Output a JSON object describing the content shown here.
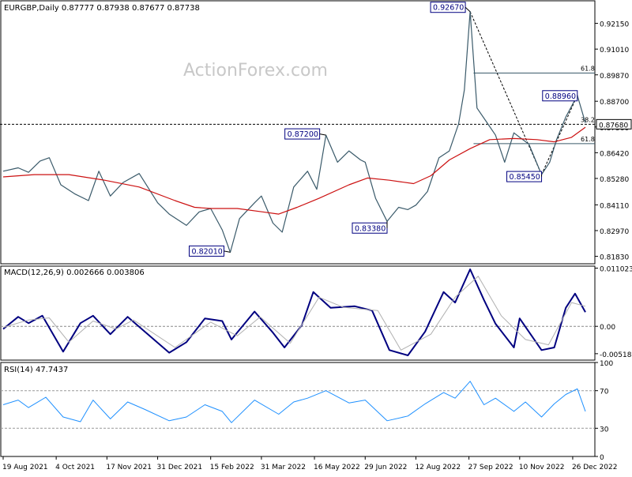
{
  "chart_data": {
    "type": "line",
    "title": "EURGBP,Daily  0.87777 0.87938 0.87677 0.87738",
    "watermark": "ActionForex.com",
    "x_labels": [
      "19 Aug 2021",
      "4 Oct 2021",
      "17 Nov 2021",
      "31 Dec 2021",
      "15 Feb 2022",
      "31 Mar 2022",
      "16 May 2022",
      "29 Jun 2022",
      "12 Aug 2022",
      "27 Sep 2022",
      "10 Nov 2022",
      "26 Dec 2022"
    ],
    "x_range": [
      "2021-08-19",
      "2023-01-06"
    ],
    "price_panel": {
      "y_ticks": [
        "0.92150",
        "0.91010",
        "0.89870",
        "0.88700",
        "0.87560",
        "0.86420",
        "0.85280",
        "0.84110",
        "0.82970",
        "0.81830"
      ],
      "ylim": [
        0.815,
        0.9315
      ],
      "current_price": "0.87680",
      "current_value": 0.8768,
      "fib_levels": [
        {
          "label": "61.8",
          "value": 0.8995
        },
        {
          "label": "38.2",
          "value": 0.8768
        },
        {
          "label": "61.8",
          "value": 0.8682
        }
      ],
      "callouts": [
        {
          "text": "0.92670",
          "date": "2022-09-28",
          "value": 0.9267
        },
        {
          "text": "0.87200",
          "date": "2022-05-26",
          "value": 0.872
        },
        {
          "text": "0.82010",
          "date": "2022-03-04",
          "value": 0.8201
        },
        {
          "text": "0.83380",
          "date": "2022-07-18",
          "value": 0.8338
        },
        {
          "text": "0.85450",
          "date": "2022-11-29",
          "value": 0.8545
        },
        {
          "text": "0.88960",
          "date": "2022-12-30",
          "value": 0.8896
        }
      ],
      "series": [
        {
          "role": "price",
          "color": "#3a5a6a",
          "points": [
            [
              "2021-08-19",
              0.856
            ],
            [
              "2021-09-01",
              0.8575
            ],
            [
              "2021-09-10",
              0.8555
            ],
            [
              "2021-09-20",
              0.8605
            ],
            [
              "2021-09-28",
              0.862
            ],
            [
              "2021-10-08",
              0.85
            ],
            [
              "2021-10-20",
              0.846
            ],
            [
              "2021-11-01",
              0.843
            ],
            [
              "2021-11-10",
              0.856
            ],
            [
              "2021-11-20",
              0.845
            ],
            [
              "2021-12-01",
              0.851
            ],
            [
              "2021-12-15",
              0.855
            ],
            [
              "2021-12-31",
              0.842
            ],
            [
              "2022-01-10",
              0.837
            ],
            [
              "2022-01-25",
              0.832
            ],
            [
              "2022-02-05",
              0.838
            ],
            [
              "2022-02-15",
              0.8395
            ],
            [
              "2022-02-25",
              0.83
            ],
            [
              "2022-03-04",
              0.8201
            ],
            [
              "2022-03-12",
              0.835
            ],
            [
              "2022-03-25",
              0.842
            ],
            [
              "2022-03-31",
              0.845
            ],
            [
              "2022-04-10",
              0.833
            ],
            [
              "2022-04-18",
              0.829
            ],
            [
              "2022-04-28",
              0.849
            ],
            [
              "2022-05-10",
              0.856
            ],
            [
              "2022-05-18",
              0.848
            ],
            [
              "2022-05-26",
              0.872
            ],
            [
              "2022-06-05",
              0.86
            ],
            [
              "2022-06-15",
              0.865
            ],
            [
              "2022-06-25",
              0.861
            ],
            [
              "2022-06-29",
              0.86
            ],
            [
              "2022-07-08",
              0.844
            ],
            [
              "2022-07-18",
              0.8338
            ],
            [
              "2022-07-28",
              0.84
            ],
            [
              "2022-08-05",
              0.839
            ],
            [
              "2022-08-12",
              0.841
            ],
            [
              "2022-08-22",
              0.847
            ],
            [
              "2022-09-01",
              0.862
            ],
            [
              "2022-09-10",
              0.865
            ],
            [
              "2022-09-18",
              0.877
            ],
            [
              "2022-09-23",
              0.892
            ],
            [
              "2022-09-28",
              0.9267
            ],
            [
              "2022-10-04",
              0.884
            ],
            [
              "2022-10-12",
              0.878
            ],
            [
              "2022-10-20",
              0.872
            ],
            [
              "2022-10-28",
              0.86
            ],
            [
              "2022-11-05",
              0.873
            ],
            [
              "2022-11-10",
              0.871
            ],
            [
              "2022-11-18",
              0.868
            ],
            [
              "2022-11-29",
              0.8545
            ],
            [
              "2022-12-06",
              0.86
            ],
            [
              "2022-12-12",
              0.87
            ],
            [
              "2022-12-20",
              0.88
            ],
            [
              "2022-12-30",
              0.8896
            ],
            [
              "2023-01-06",
              0.8774
            ]
          ]
        },
        {
          "role": "moving-average",
          "color": "#cc1111",
          "points": [
            [
              "2021-08-19",
              0.8535
            ],
            [
              "2021-09-15",
              0.8545
            ],
            [
              "2021-10-15",
              0.8545
            ],
            [
              "2021-11-15",
              0.852
            ],
            [
              "2021-12-15",
              0.849
            ],
            [
              "2022-01-15",
              0.843
            ],
            [
              "2022-02-01",
              0.84
            ],
            [
              "2022-02-15",
              0.8395
            ],
            [
              "2022-03-10",
              0.8395
            ],
            [
              "2022-04-01",
              0.838
            ],
            [
              "2022-04-15",
              0.837
            ],
            [
              "2022-05-01",
              0.84
            ],
            [
              "2022-05-20",
              0.844
            ],
            [
              "2022-06-15",
              0.85
            ],
            [
              "2022-07-01",
              0.853
            ],
            [
              "2022-07-20",
              0.852
            ],
            [
              "2022-08-10",
              0.8505
            ],
            [
              "2022-08-25",
              0.854
            ],
            [
              "2022-09-10",
              0.861
            ],
            [
              "2022-09-28",
              0.866
            ],
            [
              "2022-10-15",
              0.87
            ],
            [
              "2022-11-05",
              0.8705
            ],
            [
              "2022-11-25",
              0.87
            ],
            [
              "2022-12-10",
              0.869
            ],
            [
              "2022-12-25",
              0.871
            ],
            [
              "2023-01-06",
              0.8755
            ]
          ]
        }
      ]
    },
    "macd_panel": {
      "label": "MACD(12,26,9) 0.002666 0.003806",
      "y_ticks": [
        "0.011023",
        "0.00",
        "-0.005182"
      ],
      "ylim": [
        -0.0064,
        0.0114
      ],
      "series": [
        {
          "role": "macd",
          "color": "#000080",
          "points": [
            [
              "2021-08-19",
              -0.0005
            ],
            [
              "2021-09-01",
              0.0018
            ],
            [
              "2021-09-10",
              0.0006
            ],
            [
              "2021-09-22",
              0.002
            ],
            [
              "2021-10-10",
              -0.0048
            ],
            [
              "2021-10-25",
              0.0006
            ],
            [
              "2021-11-05",
              0.002
            ],
            [
              "2021-11-20",
              -0.0015
            ],
            [
              "2021-12-05",
              0.0018
            ],
            [
              "2022-01-10",
              -0.005
            ],
            [
              "2022-01-25",
              -0.003
            ],
            [
              "2022-02-10",
              0.0015
            ],
            [
              "2022-02-25",
              0.001
            ],
            [
              "2022-03-05",
              -0.0025
            ],
            [
              "2022-03-25",
              0.0028
            ],
            [
              "2022-04-10",
              -0.0012
            ],
            [
              "2022-04-20",
              -0.004
            ],
            [
              "2022-05-05",
              0.0002
            ],
            [
              "2022-05-15",
              0.0065
            ],
            [
              "2022-05-30",
              0.0035
            ],
            [
              "2022-06-20",
              0.0038
            ],
            [
              "2022-07-05",
              0.003
            ],
            [
              "2022-07-20",
              -0.0045
            ],
            [
              "2022-08-05",
              -0.0055
            ],
            [
              "2022-08-20",
              -0.001
            ],
            [
              "2022-09-05",
              0.0065
            ],
            [
              "2022-09-15",
              0.0045
            ],
            [
              "2022-09-28",
              0.0108
            ],
            [
              "2022-10-10",
              0.005
            ],
            [
              "2022-10-20",
              0.0005
            ],
            [
              "2022-11-05",
              -0.004
            ],
            [
              "2022-11-10",
              0.0015
            ],
            [
              "2022-11-29",
              -0.0045
            ],
            [
              "2022-12-10",
              -0.004
            ],
            [
              "2022-12-20",
              0.0035
            ],
            [
              "2022-12-28",
              0.0062
            ],
            [
              "2023-01-06",
              0.0027
            ]
          ]
        },
        {
          "role": "signal",
          "color": "#b0b0b0",
          "points": [
            [
              "2021-08-19",
              -0.0002
            ],
            [
              "2021-09-10",
              0.0012
            ],
            [
              "2021-09-28",
              0.0016
            ],
            [
              "2021-10-15",
              -0.003
            ],
            [
              "2021-11-05",
              0.001
            ],
            [
              "2021-11-25",
              -0.0005
            ],
            [
              "2021-12-10",
              0.0012
            ],
            [
              "2022-01-15",
              -0.004
            ],
            [
              "2022-02-15",
              0.0008
            ],
            [
              "2022-03-10",
              -0.0018
            ],
            [
              "2022-03-30",
              0.0018
            ],
            [
              "2022-04-25",
              -0.0032
            ],
            [
              "2022-05-20",
              0.0055
            ],
            [
              "2022-06-10",
              0.0036
            ],
            [
              "2022-07-10",
              0.003
            ],
            [
              "2022-07-30",
              -0.0045
            ],
            [
              "2022-08-25",
              -0.0015
            ],
            [
              "2022-09-15",
              0.0055
            ],
            [
              "2022-10-05",
              0.0095
            ],
            [
              "2022-10-25",
              0.002
            ],
            [
              "2022-11-15",
              -0.0025
            ],
            [
              "2022-12-05",
              -0.0035
            ],
            [
              "2022-12-25",
              0.0045
            ],
            [
              "2023-01-06",
              0.0038
            ]
          ]
        }
      ]
    },
    "rsi_panel": {
      "label": "RSI(14) 47.7437",
      "y_ticks": [
        "100",
        "70",
        "30",
        "0"
      ],
      "ylim": [
        0,
        100
      ],
      "levels": [
        70,
        30
      ],
      "series": [
        {
          "role": "rsi",
          "color": "#1e90ff",
          "points": [
            [
              "2021-08-19",
              55
            ],
            [
              "2021-09-01",
              60
            ],
            [
              "2021-09-10",
              52
            ],
            [
              "2021-09-25",
              63
            ],
            [
              "2021-10-10",
              42
            ],
            [
              "2021-10-25",
              37
            ],
            [
              "2021-11-05",
              60
            ],
            [
              "2021-11-20",
              40
            ],
            [
              "2021-12-05",
              58
            ],
            [
              "2021-12-20",
              50
            ],
            [
              "2022-01-10",
              38
            ],
            [
              "2022-01-25",
              42
            ],
            [
              "2022-02-10",
              55
            ],
            [
              "2022-02-25",
              48
            ],
            [
              "2022-03-05",
              36
            ],
            [
              "2022-03-25",
              60
            ],
            [
              "2022-04-15",
              45
            ],
            [
              "2022-04-28",
              58
            ],
            [
              "2022-05-10",
              62
            ],
            [
              "2022-05-26",
              70
            ],
            [
              "2022-06-15",
              57
            ],
            [
              "2022-06-29",
              60
            ],
            [
              "2022-07-18",
              38
            ],
            [
              "2022-08-05",
              43
            ],
            [
              "2022-08-20",
              56
            ],
            [
              "2022-09-05",
              68
            ],
            [
              "2022-09-15",
              62
            ],
            [
              "2022-09-28",
              80
            ],
            [
              "2022-10-10",
              55
            ],
            [
              "2022-10-20",
              62
            ],
            [
              "2022-11-05",
              48
            ],
            [
              "2022-11-15",
              58
            ],
            [
              "2022-11-29",
              42
            ],
            [
              "2022-12-10",
              56
            ],
            [
              "2022-12-20",
              66
            ],
            [
              "2022-12-30",
              72
            ],
            [
              "2023-01-06",
              48
            ]
          ]
        }
      ]
    }
  }
}
